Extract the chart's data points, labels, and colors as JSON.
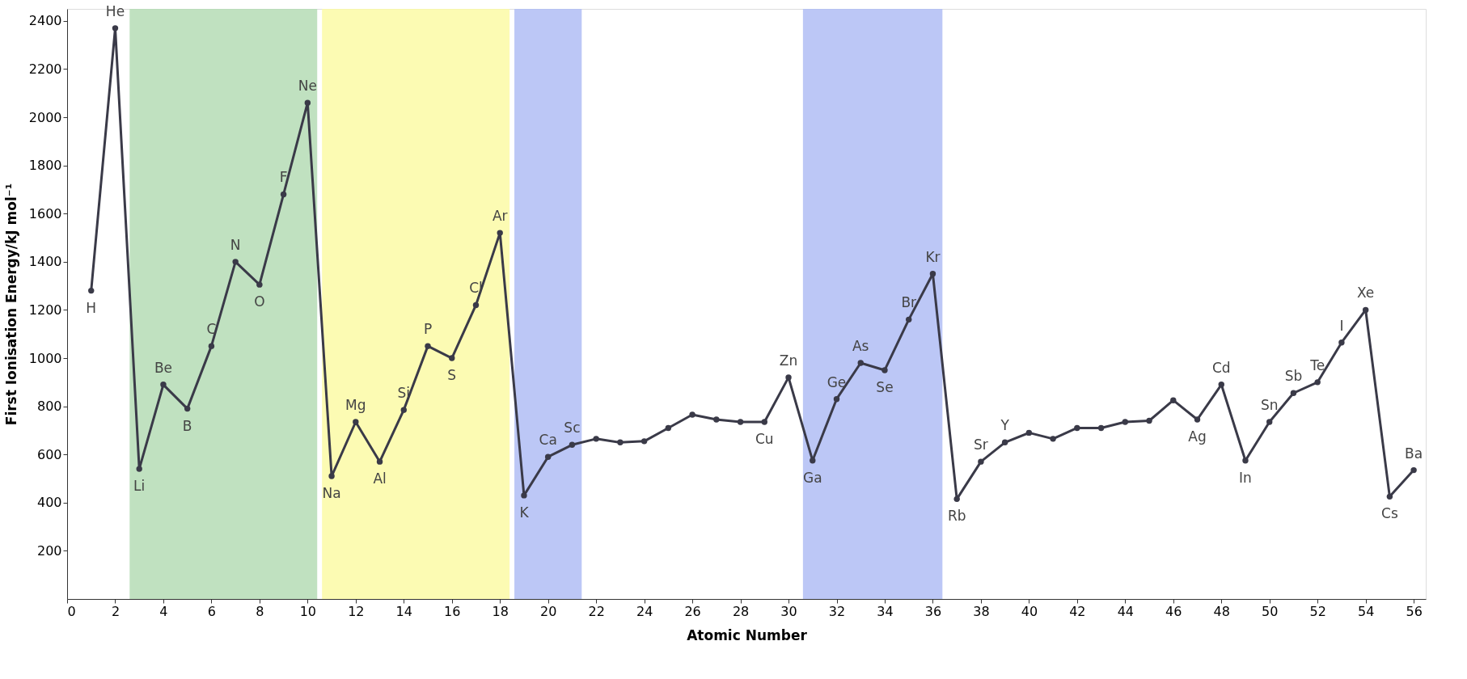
{
  "chart_data": {
    "type": "line",
    "xlabel": "Atomic Number",
    "ylabel": "First Ionisation Energy/kJ mol⁻¹",
    "x": [
      1,
      2,
      3,
      4,
      5,
      6,
      7,
      8,
      9,
      10,
      11,
      12,
      13,
      14,
      15,
      16,
      17,
      18,
      19,
      20,
      21,
      22,
      23,
      24,
      25,
      26,
      27,
      28,
      29,
      30,
      31,
      32,
      33,
      34,
      35,
      36,
      37,
      38,
      39,
      40,
      41,
      42,
      43,
      44,
      45,
      46,
      47,
      48,
      49,
      50,
      51,
      52,
      53,
      54,
      55,
      56
    ],
    "series": [
      {
        "color": "#3a3a48",
        "values": [
          1280,
          2370,
          540,
          890,
          790,
          1050,
          1400,
          1305,
          1680,
          2060,
          510,
          735,
          570,
          785,
          1050,
          1000,
          1220,
          1520,
          430,
          590,
          640,
          665,
          650,
          655,
          710,
          765,
          745,
          735,
          735,
          920,
          575,
          830,
          980,
          950,
          1160,
          1350,
          415,
          570,
          650,
          690,
          665,
          710,
          710,
          735,
          740,
          825,
          745,
          890,
          575,
          735,
          855,
          900,
          1065,
          1200,
          425,
          535
        ]
      }
    ],
    "xlim": [
      0,
      56.5
    ],
    "ylim": [
      0,
      2450
    ],
    "xticks": [
      0,
      2,
      4,
      6,
      8,
      10,
      12,
      14,
      16,
      18,
      20,
      22,
      24,
      26,
      28,
      30,
      32,
      34,
      36,
      38,
      40,
      42,
      44,
      46,
      48,
      50,
      52,
      54,
      56
    ],
    "yticks": [
      200,
      400,
      600,
      800,
      1000,
      1200,
      1400,
      1600,
      1800,
      2000,
      2200,
      2400
    ],
    "grid": false,
    "marker": "circle",
    "line_style": "solid",
    "bands": [
      {
        "axis": "x",
        "from": 2.6,
        "to": 10.4,
        "color": "#b5dcb5"
      },
      {
        "axis": "x",
        "from": 10.6,
        "to": 18.4,
        "color": "#fbfaa6"
      },
      {
        "axis": "x",
        "from": 18.6,
        "to": 21.4,
        "color": "#b0bdf5"
      },
      {
        "axis": "x",
        "from": 30.6,
        "to": 36.4,
        "color": "#b0bdf5"
      }
    ],
    "annotations": [
      {
        "text": "H",
        "x": 1,
        "y": 1280
      },
      {
        "text": "He",
        "x": 2,
        "y": 2370
      },
      {
        "text": "Li",
        "x": 3,
        "y": 540
      },
      {
        "text": "Be",
        "x": 4,
        "y": 890
      },
      {
        "text": "B",
        "x": 5,
        "y": 790
      },
      {
        "text": "C",
        "x": 6,
        "y": 1050
      },
      {
        "text": "N",
        "x": 7,
        "y": 1400
      },
      {
        "text": "O",
        "x": 8,
        "y": 1305
      },
      {
        "text": "F",
        "x": 9,
        "y": 1680
      },
      {
        "text": "Ne",
        "x": 10,
        "y": 2060
      },
      {
        "text": "Na",
        "x": 11,
        "y": 510
      },
      {
        "text": "Mg",
        "x": 12,
        "y": 735
      },
      {
        "text": "Al",
        "x": 13,
        "y": 570
      },
      {
        "text": "Si",
        "x": 14,
        "y": 785
      },
      {
        "text": "P",
        "x": 15,
        "y": 1050
      },
      {
        "text": "S",
        "x": 16,
        "y": 1000
      },
      {
        "text": "Cl",
        "x": 17,
        "y": 1220
      },
      {
        "text": "Ar",
        "x": 18,
        "y": 1520
      },
      {
        "text": "K",
        "x": 19,
        "y": 430
      },
      {
        "text": "Ca",
        "x": 20,
        "y": 590
      },
      {
        "text": "Sc",
        "x": 21,
        "y": 640
      },
      {
        "text": "Cu",
        "x": 29,
        "y": 735
      },
      {
        "text": "Zn",
        "x": 30,
        "y": 920
      },
      {
        "text": "Ga",
        "x": 31,
        "y": 575
      },
      {
        "text": "Ge",
        "x": 32,
        "y": 830
      },
      {
        "text": "As",
        "x": 33,
        "y": 980
      },
      {
        "text": "Se",
        "x": 34,
        "y": 950
      },
      {
        "text": "Br",
        "x": 35,
        "y": 1160
      },
      {
        "text": "Kr",
        "x": 36,
        "y": 1350
      },
      {
        "text": "Rb",
        "x": 37,
        "y": 415
      },
      {
        "text": "Sr",
        "x": 38,
        "y": 570
      },
      {
        "text": "Y",
        "x": 39,
        "y": 650
      },
      {
        "text": "Ag",
        "x": 47,
        "y": 745
      },
      {
        "text": "Cd",
        "x": 48,
        "y": 890
      },
      {
        "text": "In",
        "x": 49,
        "y": 575
      },
      {
        "text": "Sn",
        "x": 50,
        "y": 735
      },
      {
        "text": "Sb",
        "x": 51,
        "y": 855
      },
      {
        "text": "Te",
        "x": 52,
        "y": 900
      },
      {
        "text": "I",
        "x": 53,
        "y": 1065
      },
      {
        "text": "Xe",
        "x": 54,
        "y": 1200
      },
      {
        "text": "Cs",
        "x": 55,
        "y": 425
      },
      {
        "text": "Ba",
        "x": 56,
        "y": 535
      }
    ]
  }
}
